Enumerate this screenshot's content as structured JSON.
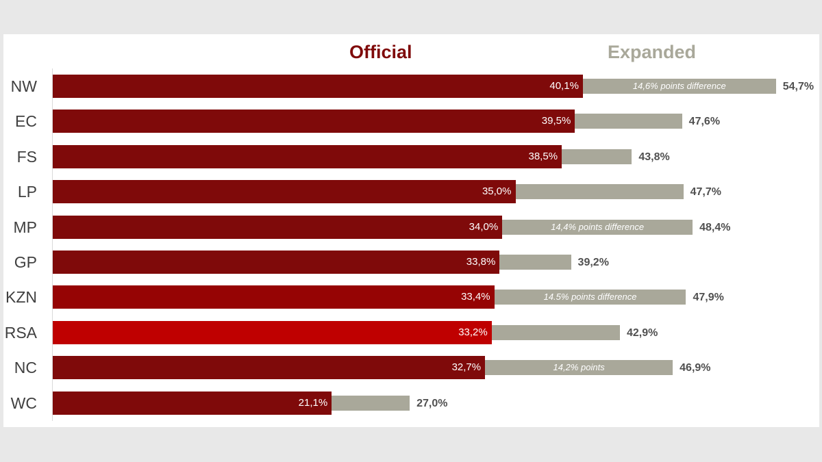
{
  "chart_data": {
    "type": "bar",
    "orientation": "horizontal",
    "legend": [
      "Official",
      "Expanded"
    ],
    "colors": {
      "official": "#7f0a0a",
      "official_highlight": "#bf0000",
      "official_kzn": "#960404",
      "expanded": "#a9a89a",
      "legend_official": "#7f0a0a",
      "legend_expanded": "#a9a89a"
    },
    "categories": [
      "NW",
      "EC",
      "FS",
      "LP",
      "MP",
      "GP",
      "KZN",
      "RSA",
      "NC",
      "WC"
    ],
    "series": [
      {
        "name": "Official",
        "values": [
          40.1,
          39.5,
          38.5,
          35.0,
          34.0,
          33.8,
          33.4,
          33.2,
          32.7,
          21.1
        ],
        "labels": [
          "40,1%",
          "39,5%",
          "38,5%",
          "35,0%",
          "34,0%",
          "33,8%",
          "33,4%",
          "33,2%",
          "32,7%",
          "21,1%"
        ]
      },
      {
        "name": "Expanded",
        "values": [
          54.7,
          47.6,
          43.8,
          47.7,
          48.4,
          39.2,
          47.9,
          42.9,
          46.9,
          27.0
        ],
        "labels": [
          "54,7%",
          "47,6%",
          "43,8%",
          "47,7%",
          "48,4%",
          "39,2%",
          "47,9%",
          "42,9%",
          "46,9%",
          "27,0%"
        ]
      }
    ],
    "highlight": "RSA",
    "annotations": [
      {
        "category": "NW",
        "text": "14,6% points difference"
      },
      {
        "category": "MP",
        "text": "14,4% points difference"
      },
      {
        "category": "KZN",
        "text": "14.5% points difference"
      },
      {
        "category": "NC",
        "text": "14,2% points"
      }
    ],
    "xlim": [
      0,
      60
    ],
    "title": "",
    "xlabel": "",
    "ylabel": ""
  }
}
